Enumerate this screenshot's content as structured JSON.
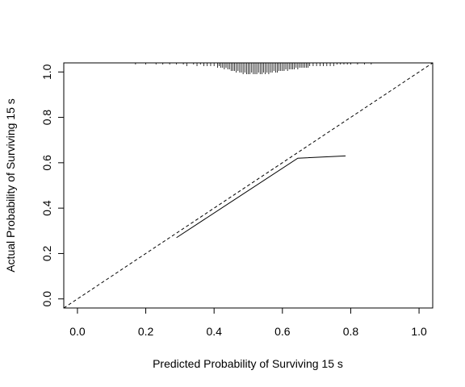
{
  "chart_data": {
    "type": "line",
    "xlabel": "Predicted Probability of Surviving 15 s",
    "ylabel": "Actual Probability of Surviving 15 s",
    "xlim": [
      -0.04,
      1.04
    ],
    "ylim": [
      -0.04,
      1.04
    ],
    "x_ticks": [
      "0.0",
      "0.2",
      "0.4",
      "0.6",
      "0.8",
      "1.0"
    ],
    "y_ticks": [
      "0.0",
      "0.2",
      "0.4",
      "0.6",
      "0.8",
      "1.0"
    ],
    "grid": false,
    "legend": "none",
    "series": [
      {
        "style": "dashed",
        "color": "#000000",
        "x": [
          -0.04,
          1.04
        ],
        "y": [
          -0.04,
          1.04
        ]
      },
      {
        "style": "solid",
        "color": "#000000",
        "x": [
          0.29,
          0.645,
          0.785
        ],
        "y": [
          0.27,
          0.62,
          0.63
        ]
      }
    ],
    "rug": {
      "position": "top",
      "x": [
        0.17,
        0.2,
        0.23,
        0.25,
        0.27,
        0.29,
        0.31,
        0.32,
        0.34,
        0.35,
        0.36,
        0.37,
        0.38,
        0.39,
        0.4,
        0.41,
        0.415,
        0.42,
        0.425,
        0.43,
        0.435,
        0.44,
        0.445,
        0.45,
        0.455,
        0.46,
        0.465,
        0.47,
        0.475,
        0.48,
        0.485,
        0.49,
        0.495,
        0.5,
        0.505,
        0.51,
        0.515,
        0.52,
        0.525,
        0.53,
        0.535,
        0.54,
        0.545,
        0.55,
        0.555,
        0.56,
        0.565,
        0.57,
        0.575,
        0.58,
        0.585,
        0.59,
        0.595,
        0.6,
        0.605,
        0.61,
        0.615,
        0.62,
        0.625,
        0.63,
        0.635,
        0.64,
        0.645,
        0.65,
        0.655,
        0.66,
        0.665,
        0.67,
        0.675,
        0.68,
        0.69,
        0.7,
        0.71,
        0.72,
        0.73,
        0.74,
        0.75,
        0.76,
        0.77,
        0.78,
        0.79,
        0.8,
        0.82,
        0.84,
        0.86
      ],
      "heights": [
        1,
        1,
        1,
        1,
        1,
        1,
        1,
        2,
        1,
        2,
        1,
        2,
        2,
        2,
        2,
        3,
        2,
        3,
        3,
        4,
        3,
        4,
        4,
        5,
        5,
        5,
        6,
        5,
        6,
        6,
        7,
        6,
        7,
        7,
        7,
        6,
        7,
        7,
        7,
        6,
        7,
        7,
        6,
        7,
        6,
        7,
        6,
        6,
        5,
        6,
        6,
        5,
        5,
        5,
        5,
        4,
        5,
        4,
        4,
        4,
        4,
        3,
        4,
        3,
        3,
        3,
        3,
        3,
        3,
        2,
        2,
        2,
        2,
        2,
        2,
        2,
        2,
        1,
        1,
        1,
        1,
        1,
        1,
        1,
        1
      ]
    }
  }
}
